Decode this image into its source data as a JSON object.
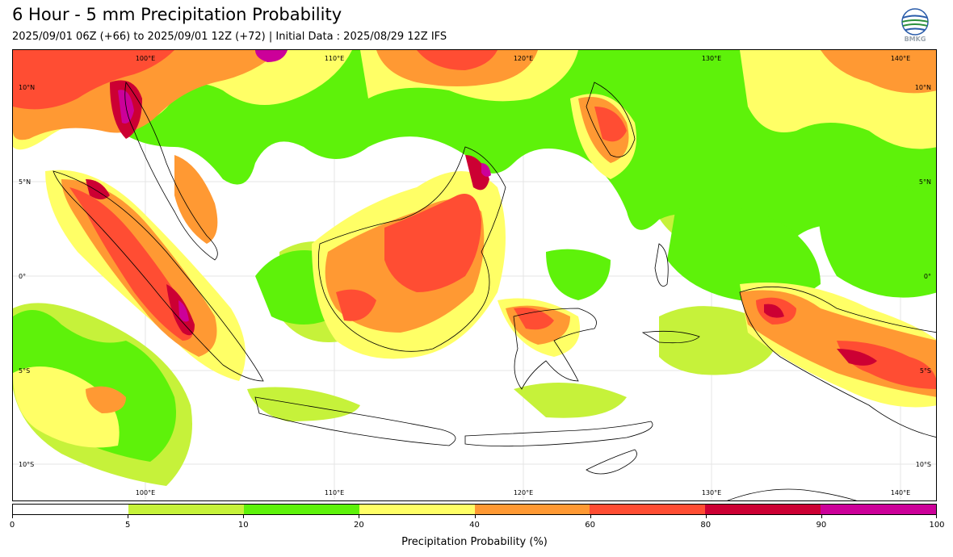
{
  "header": {
    "title": "6 Hour - 5 mm Precipitation Probability",
    "subtitle": "2025/09/01 06Z (+66) to 2025/09/01 12Z (+72) | Initial Data : 2025/08/29 12Z IFS"
  },
  "logo": {
    "text": "BMKG",
    "icon": "bmkg-globe-logo"
  },
  "map": {
    "lon_range": [
      93,
      142
    ],
    "lat_range": [
      -12,
      12
    ],
    "lon_labels": [
      {
        "text": "100°E",
        "lon": 100
      },
      {
        "text": "110°E",
        "lon": 110
      },
      {
        "text": "120°E",
        "lon": 120
      },
      {
        "text": "130°E",
        "lon": 130
      },
      {
        "text": "140°E",
        "lon": 140
      }
    ],
    "lat_labels": [
      {
        "text": "10°N",
        "lat": 10
      },
      {
        "text": "5°N",
        "lat": 5
      },
      {
        "text": "0°",
        "lat": 0
      },
      {
        "text": "5°S",
        "lat": -5
      },
      {
        "text": "10°S",
        "lat": -10
      }
    ]
  },
  "colorbar": {
    "title": "Precipitation Probability (%)",
    "ticks": [
      "0",
      "5",
      "10",
      "20",
      "40",
      "60",
      "80",
      "90",
      "100"
    ],
    "colors": [
      "#ffffff",
      "#c6f23a",
      "#5ef20a",
      "#ffff66",
      "#ff9933",
      "#ff4d33",
      "#cc0033",
      "#cc0099"
    ]
  }
}
